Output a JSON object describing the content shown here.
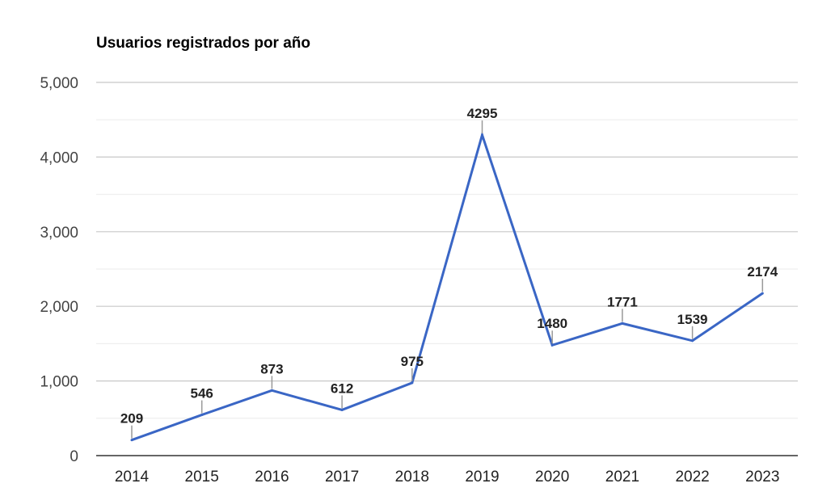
{
  "chart_data": {
    "type": "line",
    "title": "Usuarios registrados por año",
    "categories": [
      "2014",
      "2015",
      "2016",
      "2017",
      "2018",
      "2019",
      "2020",
      "2021",
      "2022",
      "2023"
    ],
    "values": [
      209,
      546,
      873,
      612,
      975,
      4295,
      1480,
      1771,
      1539,
      2174
    ],
    "value_labels": [
      "209",
      "546",
      "873",
      "612",
      "975",
      "4295",
      "1480",
      "1771",
      "1539",
      "2174"
    ],
    "ylim": [
      0,
      5000
    ],
    "yticks": [
      0,
      1000,
      2000,
      3000,
      4000,
      5000
    ],
    "ytick_labels": [
      "0",
      "1,000",
      "2,000",
      "3,000",
      "4,000",
      "5,000"
    ],
    "grid": true,
    "legend": "none",
    "xlabel": "",
    "ylabel": "",
    "colors": {
      "line": "#3a66c5",
      "major_grid": "#c8c8c8",
      "minor_grid": "#ebebeb",
      "axis": "#333333",
      "leader": "#999999"
    }
  }
}
